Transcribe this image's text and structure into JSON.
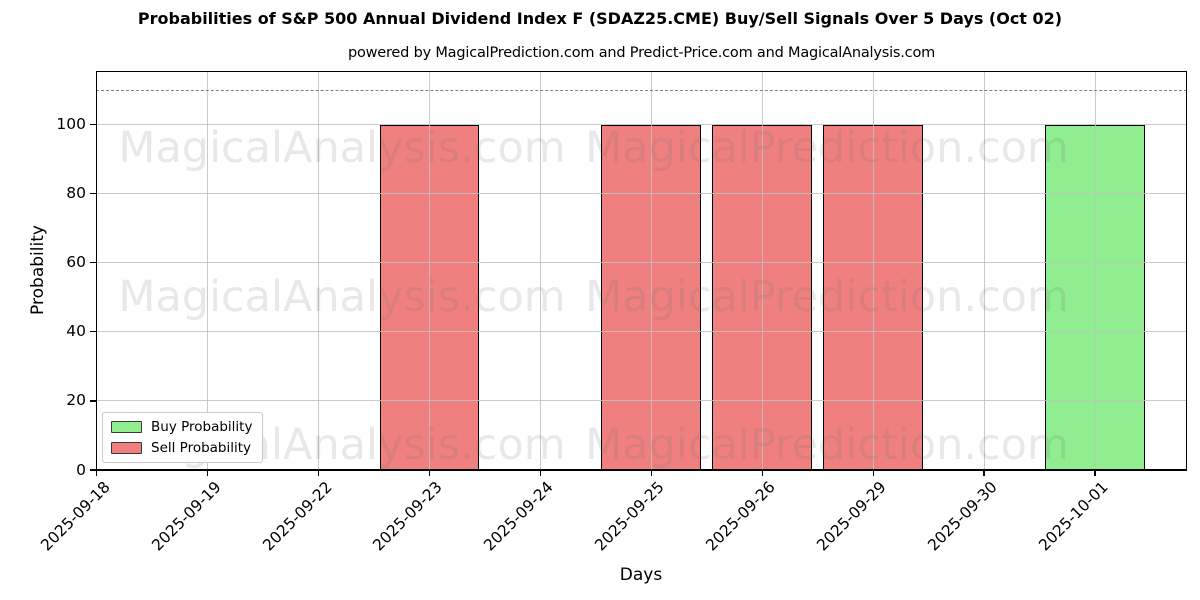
{
  "title": "Probabilities of S&P 500 Annual Dividend Index F (SDAZ25.CME) Buy/Sell Signals Over 5 Days (Oct 02)",
  "subtitle": "powered by MagicalPrediction.com and Predict-Price.com and MagicalAnalysis.com",
  "legend": [
    {
      "label": "Buy Probability",
      "color": "#90ee90"
    },
    {
      "label": "Sell Probability",
      "color": "#f08080"
    }
  ],
  "watermarks": {
    "texts": [
      "MagicalAnalysis.com",
      "MagicalPrediction.com"
    ]
  },
  "colors": {
    "buy": "#90ee90",
    "sell": "#f08080",
    "grid": "#c2c2c2",
    "dashed_line": "#7f7f7f",
    "bar_edge": "#000000"
  },
  "chart_data": {
    "type": "bar",
    "title": "Probabilities of S&P 500 Annual Dividend Index F (SDAZ25.CME) Buy/Sell Signals Over 5 Days (Oct 02)",
    "subtitle": "powered by MagicalPrediction.com and Predict-Price.com and MagicalAnalysis.com",
    "xlabel": "Days",
    "ylabel": "Probability",
    "categories": [
      "2025-09-18",
      "2025-09-19",
      "2025-09-22",
      "2025-09-23",
      "2025-09-24",
      "2025-09-25",
      "2025-09-26",
      "2025-09-29",
      "2025-09-30",
      "2025-10-01"
    ],
    "series": [
      {
        "name": "Buy Probability",
        "color": "#90ee90",
        "values": [
          0,
          0,
          0,
          0,
          0,
          0,
          0,
          0,
          0,
          100
        ]
      },
      {
        "name": "Sell Probability",
        "color": "#f08080",
        "values": [
          0,
          0,
          0,
          100,
          0,
          100,
          100,
          100,
          0,
          0
        ]
      }
    ],
    "yticks": [
      0,
      20,
      40,
      60,
      80,
      100
    ],
    "ylim": [
      0,
      115.5
    ],
    "dashed_hline": 110,
    "grid": true,
    "legend_position": "lower left"
  }
}
